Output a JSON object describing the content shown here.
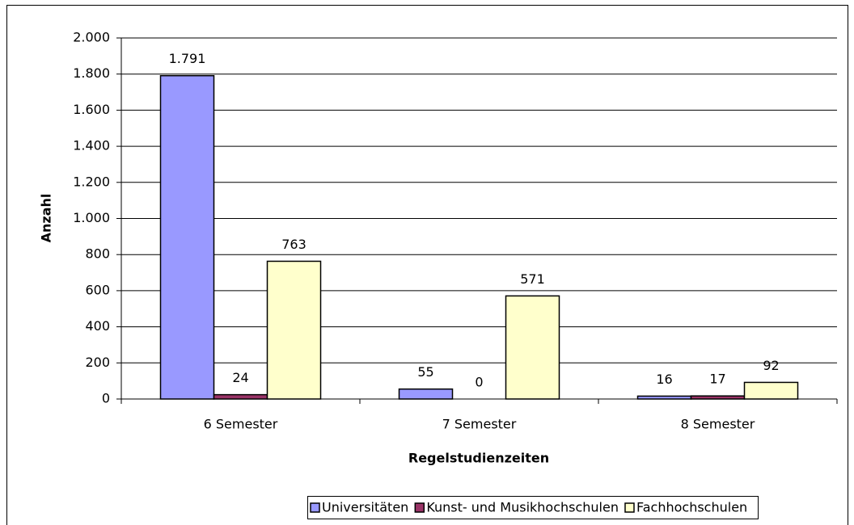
{
  "chart_data": {
    "type": "bar",
    "x_label": "Regelstudienzeiten",
    "y_label": "Anzahl",
    "categories": [
      "6 Semester",
      "7 Semester",
      "8 Semester"
    ],
    "series": [
      {
        "name": "Universitäten",
        "color": "#9999ff",
        "values": [
          1791,
          55,
          16
        ],
        "value_labels": [
          "1.791",
          "55",
          "16"
        ]
      },
      {
        "name": "Kunst- und Musikhochschulen",
        "color": "#993366",
        "values": [
          24,
          0,
          17
        ]
      },
      {
        "name": "Fachhochschulen",
        "color": "#ffffcc",
        "values": [
          763,
          571,
          92
        ]
      }
    ],
    "ylim": [
      0,
      2000
    ],
    "yticks": [
      0,
      200,
      400,
      600,
      800,
      {
        "value": 1000,
        "label": "1.000"
      },
      {
        "value": 1200,
        "label": "1.200"
      },
      {
        "value": 1400,
        "label": "1.400"
      },
      {
        "value": 1600,
        "label": "1.600"
      },
      {
        "value": 1800,
        "label": "1.800"
      },
      {
        "value": 2000,
        "label": "2.000"
      }
    ],
    "grid": true,
    "legend": "bottom"
  }
}
